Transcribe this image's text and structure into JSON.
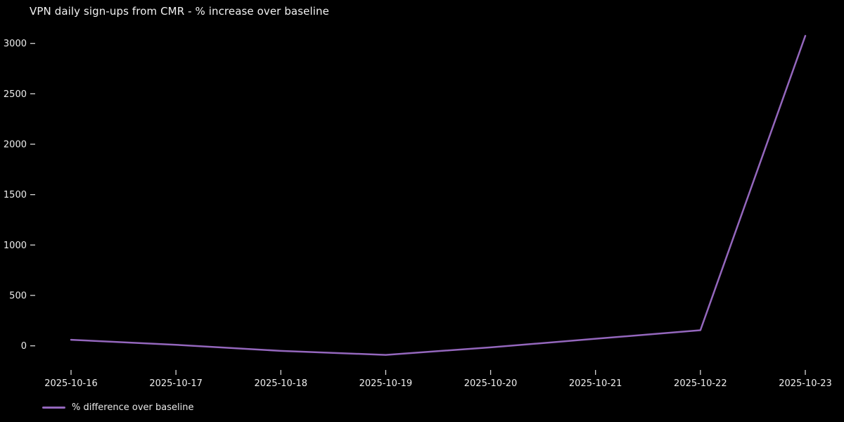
{
  "figure": {
    "background": "#000000"
  },
  "chart_data": {
    "type": "line",
    "title": "VPN daily sign-ups from CMR - % increase over baseline",
    "categories": [
      "2025-10-16",
      "2025-10-17",
      "2025-10-18",
      "2025-10-19",
      "2025-10-20",
      "2025-10-21",
      "2025-10-22",
      "2025-10-23"
    ],
    "series": [
      {
        "name": "% difference over baseline",
        "color": "#9467bd",
        "values": [
          60,
          10,
          -50,
          -90,
          -15,
          70,
          155,
          3075
        ]
      }
    ],
    "xlabel": "",
    "ylabel": "",
    "yticks": [
      0,
      500,
      1000,
      1500,
      2000,
      2500,
      3000
    ],
    "ylim": [
      -250,
      3200
    ],
    "grid": false,
    "legend": {
      "position": "lower-left",
      "entries": [
        "% difference over baseline"
      ]
    },
    "text_color": "#ededed",
    "tick_color": "#d6d6d6"
  }
}
